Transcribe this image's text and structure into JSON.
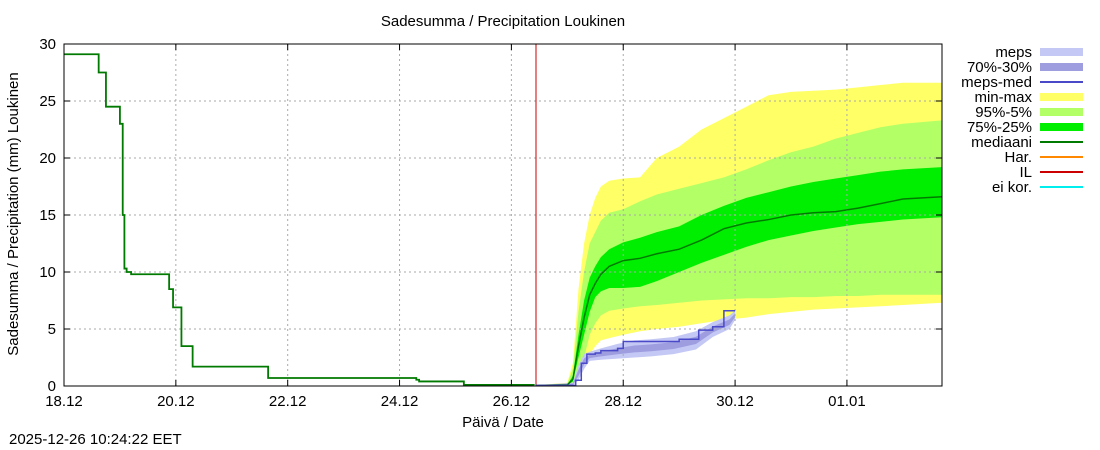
{
  "timestamp": "2025-12-26 10:24:22 EET",
  "chart_data": {
    "type": "area",
    "title": "Sadesumma / Precipitation  Loukinen",
    "xlabel": "Päivä / Date",
    "ylabel": "Sadesumma / Precipitation (mm)  Loukinen",
    "xlim_days": [
      0,
      15.7
    ],
    "ylim": [
      0,
      30
    ],
    "yticks": [
      0,
      5,
      10,
      15,
      20,
      25,
      30
    ],
    "x_ticks": [
      {
        "day": 0,
        "label": "18.12"
      },
      {
        "day": 2,
        "label": "20.12"
      },
      {
        "day": 4,
        "label": "22.12"
      },
      {
        "day": 6,
        "label": "24.12"
      },
      {
        "day": 8,
        "label": "26.12"
      },
      {
        "day": 10,
        "label": "28.12"
      },
      {
        "day": 12,
        "label": "30.12"
      },
      {
        "day": 14,
        "label": "01.01"
      }
    ],
    "grid": true,
    "legend_position": "right",
    "forecast_start_day": 8.44,
    "colors": {
      "meps": "#c4c8f4",
      "meps_70_30": "#9d9de0",
      "meps_med": "#4a4ac8",
      "min_max": "#ffff66",
      "p95_5": "#b2ff66",
      "p75_25": "#00ee00",
      "mediaani": "#007a00",
      "har": "#ff8800",
      "il": "#cc0000",
      "ei_kor": "#00eeee",
      "grid": "#aaaaaa",
      "axis": "#000000"
    },
    "legend": [
      {
        "label": "meps",
        "style": "band",
        "color_key": "meps"
      },
      {
        "label": "70%-30%",
        "style": "band",
        "color_key": "meps_70_30"
      },
      {
        "label": "meps-med",
        "style": "line",
        "color_key": "meps_med"
      },
      {
        "label": "min-max",
        "style": "band",
        "color_key": "min_max"
      },
      {
        "label": "95%-5%",
        "style": "band",
        "color_key": "p95_5"
      },
      {
        "label": "75%-25%",
        "style": "band",
        "color_key": "p75_25"
      },
      {
        "label": "mediaani",
        "style": "line",
        "color_key": "mediaani"
      },
      {
        "label": "Har.",
        "style": "line",
        "color_key": "har"
      },
      {
        "label": "IL",
        "style": "line",
        "color_key": "il"
      },
      {
        "label": "ei kor.",
        "style": "line",
        "color_key": "ei_kor"
      }
    ],
    "observed": {
      "x": [
        0,
        0.55,
        0.62,
        0.75,
        0.95,
        1.0,
        1.05,
        1.08,
        1.12,
        1.2,
        1.5,
        1.8,
        1.88,
        1.95,
        2.05,
        2.1,
        2.3,
        3.55,
        3.65,
        4.0,
        6.3,
        6.35,
        7.1,
        7.15,
        8.4
      ],
      "y": [
        29.1,
        29.1,
        27.5,
        24.5,
        24.5,
        23.0,
        15.0,
        10.3,
        10.0,
        9.8,
        9.8,
        9.8,
        8.5,
        6.9,
        6.9,
        3.5,
        1.7,
        1.7,
        0.7,
        0.7,
        0.55,
        0.4,
        0.4,
        0.1,
        0.05
      ]
    },
    "ens_x": [
      8.44,
      9.0,
      9.1,
      9.2,
      9.3,
      9.4,
      9.5,
      9.6,
      9.75,
      10.0,
      10.3,
      10.6,
      11.0,
      11.4,
      11.8,
      12.2,
      12.6,
      13.0,
      13.4,
      13.8,
      14.2,
      14.6,
      15.0,
      15.7
    ],
    "ens_min": [
      0.05,
      0.05,
      0.1,
      0.6,
      1.5,
      2.8,
      3.5,
      4.0,
      4.2,
      4.5,
      4.8,
      5.0,
      5.2,
      5.5,
      5.8,
      6.0,
      6.3,
      6.5,
      6.7,
      6.8,
      6.9,
      7.0,
      7.1,
      7.3
    ],
    "ens_p5": [
      0.05,
      0.05,
      0.2,
      1.0,
      2.5,
      4.5,
      5.5,
      6.2,
      6.6,
      6.8,
      7.0,
      7.1,
      7.3,
      7.5,
      7.6,
      7.7,
      7.7,
      7.8,
      7.8,
      7.9,
      7.9,
      8.0,
      8.0,
      8.0
    ],
    "ens_p25": [
      0.05,
      0.05,
      0.4,
      2.5,
      4.5,
      6.5,
      7.8,
      8.3,
      8.6,
      8.6,
      8.7,
      9.2,
      10.0,
      10.8,
      11.5,
      12.2,
      12.8,
      13.2,
      13.6,
      13.9,
      14.2,
      14.4,
      14.6,
      14.8
    ],
    "ens_median": [
      0.05,
      0.1,
      0.6,
      3.5,
      6.0,
      8.0,
      9.0,
      9.8,
      10.5,
      11.0,
      11.2,
      11.6,
      12.0,
      12.8,
      13.8,
      14.3,
      14.6,
      15.0,
      15.2,
      15.3,
      15.6,
      16.0,
      16.4,
      16.6
    ],
    "ens_p75": [
      0.05,
      0.1,
      0.9,
      4.5,
      7.5,
      9.5,
      10.5,
      11.3,
      12.0,
      12.6,
      13.0,
      13.5,
      14.0,
      15.0,
      15.8,
      16.5,
      17.0,
      17.5,
      17.9,
      18.2,
      18.5,
      18.8,
      19.0,
      19.2
    ],
    "ens_p95": [
      0.05,
      0.2,
      1.5,
      6.5,
      10.0,
      12.5,
      13.5,
      14.5,
      15.2,
      15.5,
      16.2,
      16.8,
      17.3,
      17.8,
      18.3,
      19.0,
      19.8,
      20.5,
      21.0,
      21.7,
      22.2,
      22.7,
      23.0,
      23.3
    ],
    "ens_max": [
      0.05,
      0.3,
      2.0,
      8.5,
      12.5,
      15.0,
      16.5,
      17.5,
      18.0,
      18.2,
      18.3,
      20.0,
      21.0,
      22.5,
      23.5,
      24.5,
      25.5,
      25.8,
      25.9,
      26.0,
      26.2,
      26.4,
      26.6,
      26.6
    ],
    "meps_x": [
      8.44,
      9.1,
      9.2,
      9.3,
      9.4,
      9.6,
      9.9,
      10.2,
      10.5,
      10.9,
      11.3,
      11.6,
      11.9,
      12.0
    ],
    "meps_lower": [
      0.05,
      0.05,
      0.5,
      1.5,
      2.2,
      2.3,
      2.4,
      2.5,
      2.6,
      2.8,
      3.2,
      4.3,
      5.0,
      5.8
    ],
    "meps_upper": [
      0.05,
      0.3,
      1.8,
      2.8,
      3.0,
      3.3,
      3.7,
      4.0,
      4.1,
      4.3,
      4.8,
      5.6,
      6.2,
      6.6
    ],
    "meps_med": {
      "x": [
        8.44,
        9.1,
        9.15,
        9.25,
        9.35,
        9.5,
        9.6,
        9.9,
        10.0,
        10.9,
        11.0,
        11.3,
        11.35,
        11.55,
        11.6,
        11.8,
        12.0
      ],
      "y": [
        0.05,
        0.05,
        0.5,
        2.0,
        2.8,
        2.9,
        3.1,
        3.3,
        3.9,
        3.9,
        4.1,
        4.1,
        4.9,
        4.9,
        5.2,
        6.6,
        6.6
      ]
    }
  }
}
